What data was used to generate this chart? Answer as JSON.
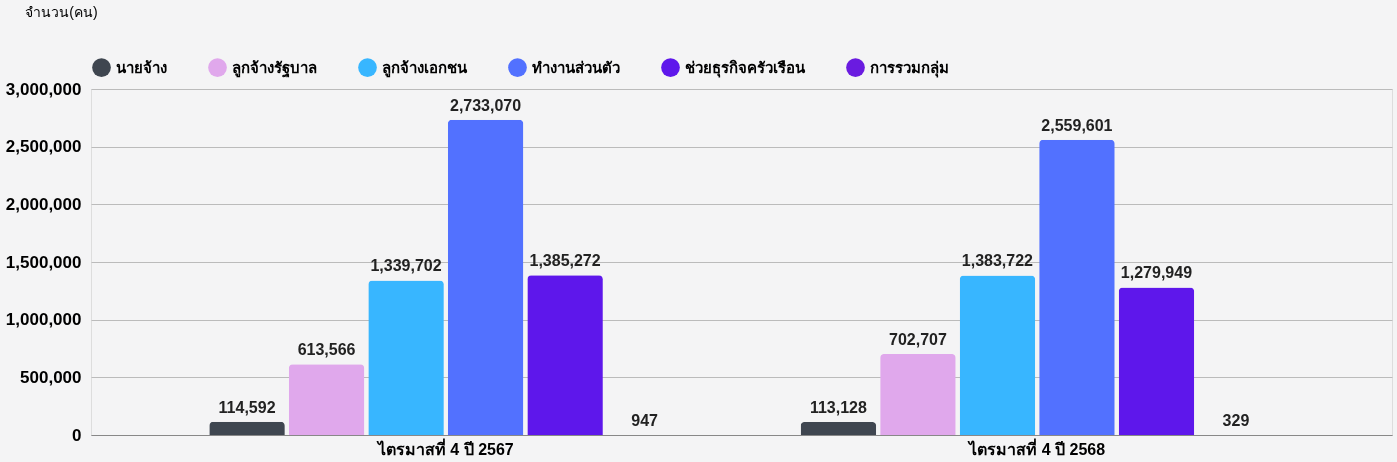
{
  "chart_data": {
    "type": "bar",
    "ylabel": "จำนวน(คน)",
    "categories": [
      "ไตรมาสที่ 4 ปี 2567",
      "ไตรมาสที่ 4 ปี 2568"
    ],
    "series": [
      {
        "name": "นายจ้าง",
        "color": "#3f4650",
        "values": [
          114592,
          113128
        ],
        "value_labels": [
          "114,592",
          "113,128"
        ]
      },
      {
        "name": "ลูกจ้างรัฐบาล",
        "color": "#e0a8ec",
        "values": [
          613566,
          702707
        ],
        "value_labels": [
          "613,566",
          "702,707"
        ]
      },
      {
        "name": "ลูกจ้างเอกชน",
        "color": "#38b6ff",
        "values": [
          1339702,
          1383722
        ],
        "value_labels": [
          "1,339,702",
          "1,383,722"
        ]
      },
      {
        "name": "ทำงานส่วนตัว",
        "color": "#5271ff",
        "values": [
          2733070,
          2559601
        ],
        "value_labels": [
          "2,733,070",
          "2,559,601"
        ]
      },
      {
        "name": "ช่วยธุรกิจครัวเรือน",
        "color": "#5e17eb",
        "values": [
          1385272,
          1279949
        ],
        "value_labels": [
          "1,385,272",
          "1,279,949"
        ]
      },
      {
        "name": "การรวมกลุ่ม",
        "color": "#6a1be0",
        "values": [
          947,
          329
        ],
        "value_labels": [
          "947",
          "329"
        ]
      }
    ],
    "ylim": [
      0,
      3000000
    ],
    "yticks": [
      0,
      {
        "value": 500000,
        "label": "500,000"
      },
      {
        "value": 1000000,
        "label": "1,000,000"
      },
      {
        "value": 1500000,
        "label": "1,500,000"
      },
      {
        "value": 2000000,
        "label": "2,000,000"
      },
      {
        "value": 2500000,
        "label": "2,500,000"
      },
      {
        "value": 3000000,
        "label": "3,000,000"
      }
    ],
    "grid": "y",
    "legend": "top"
  }
}
